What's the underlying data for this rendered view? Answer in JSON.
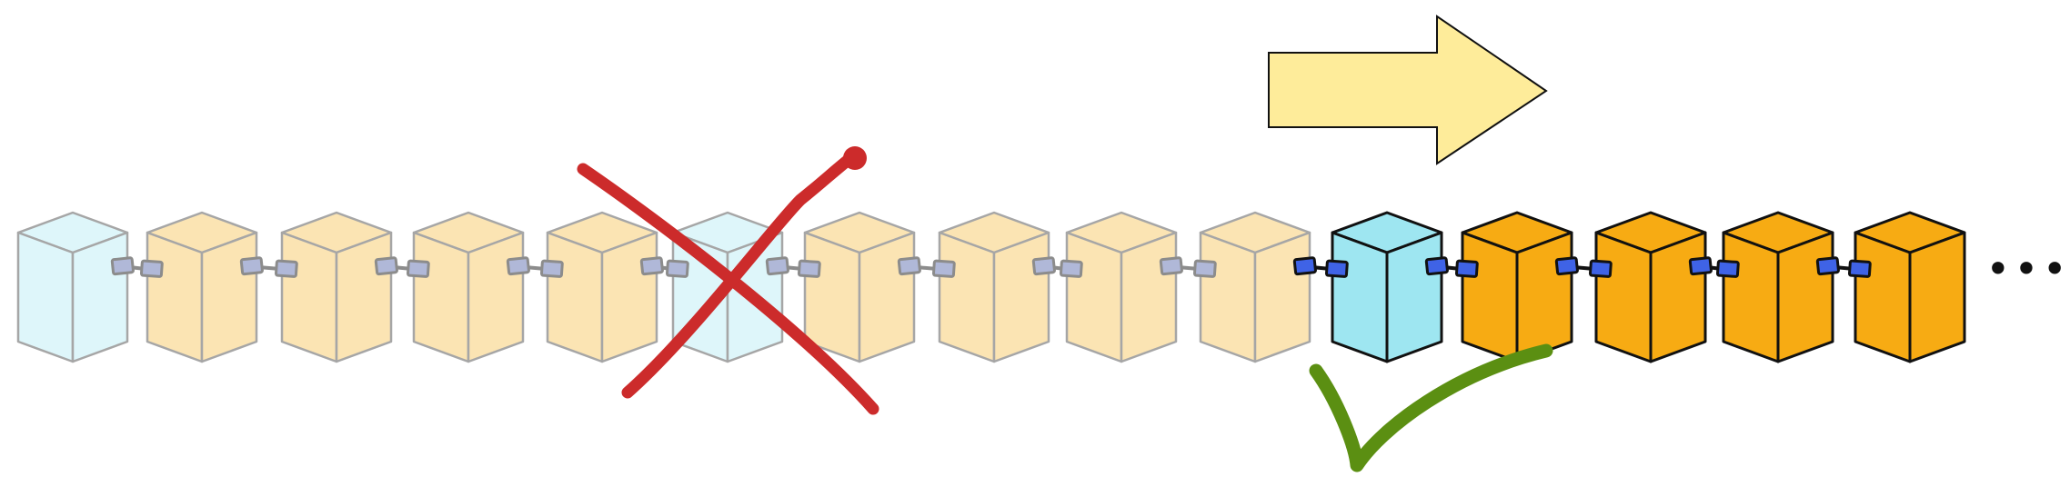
{
  "diagram": {
    "blocks": [
      {
        "kind": "genesis",
        "state": "faded"
      },
      {
        "kind": "block",
        "state": "faded"
      },
      {
        "kind": "block",
        "state": "faded"
      },
      {
        "kind": "block",
        "state": "faded"
      },
      {
        "kind": "block",
        "state": "faded"
      },
      {
        "kind": "genesis",
        "state": "faded"
      },
      {
        "kind": "block",
        "state": "faded"
      },
      {
        "kind": "block",
        "state": "faded"
      },
      {
        "kind": "block",
        "state": "faded"
      },
      {
        "kind": "block",
        "state": "faded"
      },
      {
        "kind": "genesis",
        "state": "active"
      },
      {
        "kind": "block",
        "state": "active"
      },
      {
        "kind": "block",
        "state": "active"
      },
      {
        "kind": "block",
        "state": "active"
      },
      {
        "kind": "block",
        "state": "active"
      }
    ],
    "continuation": "•••",
    "colors": {
      "genesis_active": "#9ee6f1",
      "genesis_faded": "#def6fa",
      "block_active": "#f7ab13",
      "block_faded": "#fbe4b3",
      "link_active": "#3f63e6",
      "link_faded": "#b0b8d8",
      "arrow_fill": "#feec9a",
      "cross": "#cc2b2b",
      "check": "#5b8f12"
    },
    "icons": [
      "right-arrow-icon",
      "cross-mark-icon",
      "check-mark-icon",
      "chain-link-icon",
      "cube-icon"
    ]
  }
}
